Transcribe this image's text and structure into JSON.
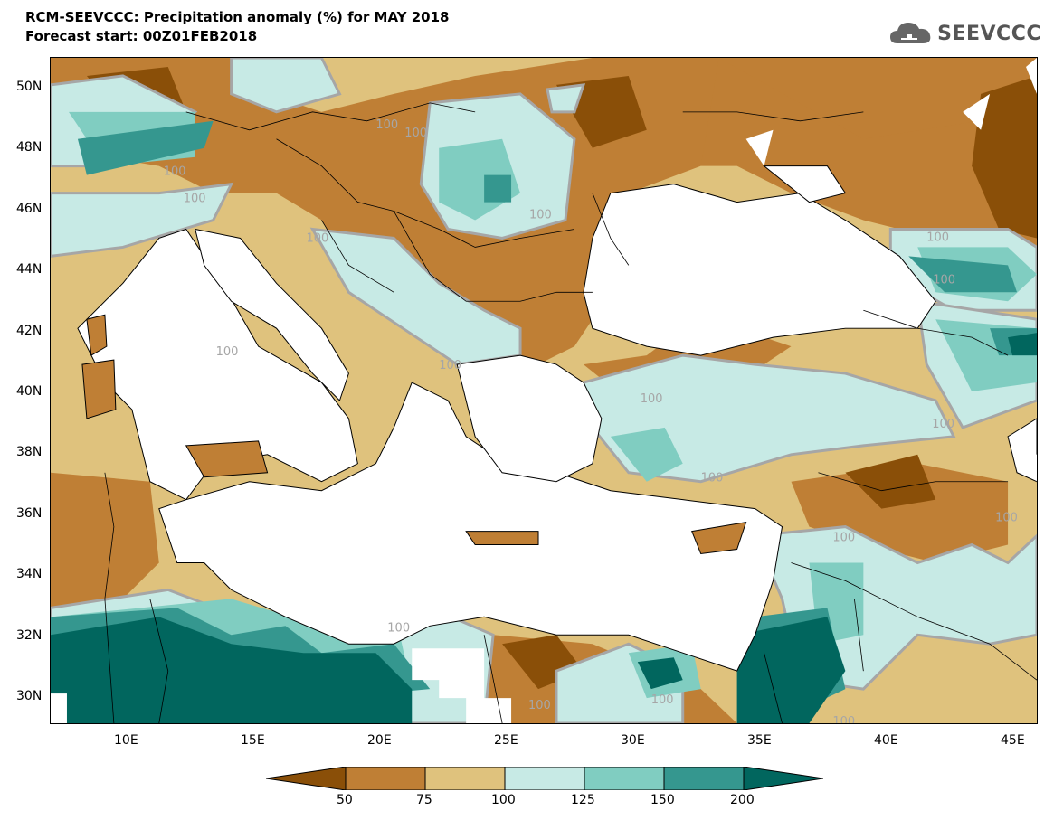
{
  "title": {
    "line1": "RCM-SEEVCCC: Precipitation anomaly (%) for MAY 2018",
    "line2": "Forecast start: 00Z01FEB2018"
  },
  "logo": {
    "text": "SEEVCCC",
    "icon": "cloud-icon"
  },
  "axes": {
    "lat_labels": [
      "50N",
      "48N",
      "46N",
      "44N",
      "42N",
      "40N",
      "38N",
      "36N",
      "34N",
      "32N",
      "30N"
    ],
    "lon_labels": [
      "10E",
      "15E",
      "20E",
      "25E",
      "30E",
      "35E",
      "40E",
      "45E"
    ]
  },
  "contour_labels": [
    "100",
    "100",
    "100",
    "100",
    "100",
    "100",
    "100",
    "100",
    "100",
    "100",
    "100",
    "100",
    "100",
    "100",
    "100",
    "100",
    "100",
    "100",
    "100"
  ],
  "colorbar": {
    "labels": [
      "50",
      "75",
      "100",
      "125",
      "150",
      "200"
    ],
    "colors": [
      "#8a4f08",
      "#bf7f35",
      "#dfc27d",
      "#c7eae5",
      "#80cdc1",
      "#35978f",
      "#01665e"
    ]
  },
  "colors": {
    "sea": "#ffffff",
    "isoline": "#a6a6a6"
  }
}
